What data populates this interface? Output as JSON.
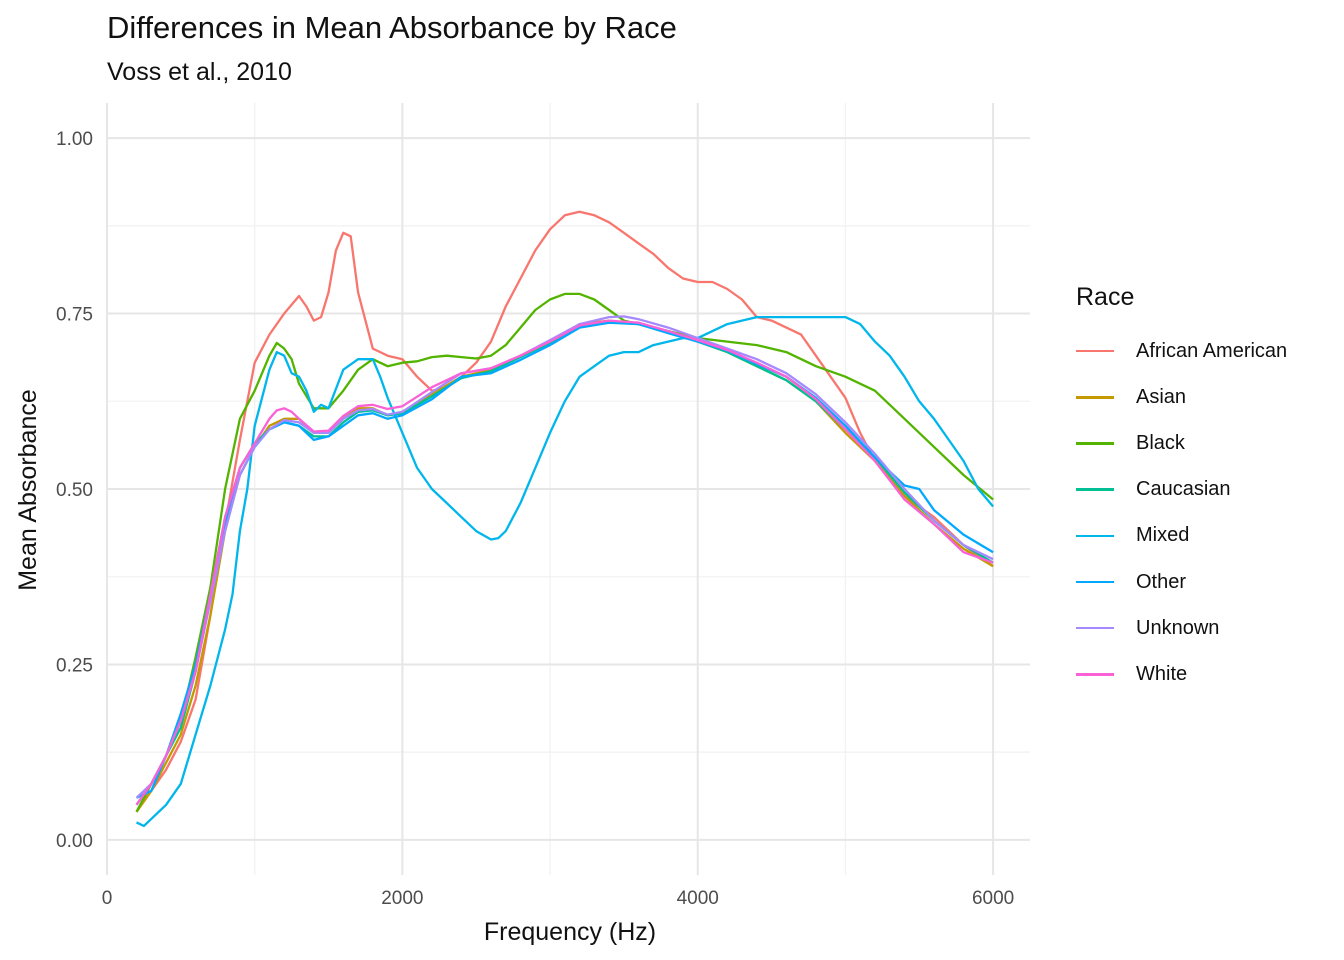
{
  "chart_data": {
    "type": "line",
    "title": "Differences in Mean Absorbance by Race",
    "subtitle": "Voss et al., 2010",
    "xlabel": "Frequency (Hz)",
    "ylabel": "Mean Absorbance",
    "xlim": [
      0,
      6250
    ],
    "ylim": [
      -0.05,
      1.05
    ],
    "x_ticks": [
      0,
      2000,
      4000,
      6000
    ],
    "x_tick_labels": [
      "0",
      "2000",
      "4000",
      "6000"
    ],
    "y_ticks": [
      0,
      0.25,
      0.5,
      0.75,
      1.0
    ],
    "y_tick_labels": [
      "0.00",
      "0.25",
      "0.50",
      "0.75",
      "1.00"
    ],
    "grid": true,
    "legend_title": "Race",
    "legend_position": "right",
    "series": [
      {
        "name": "African American",
        "color": "#F8766D",
        "x": [
          200,
          300,
          400,
          500,
          600,
          700,
          800,
          900,
          1000,
          1100,
          1200,
          1300,
          1350,
          1400,
          1450,
          1500,
          1550,
          1600,
          1650,
          1700,
          1800,
          1900,
          2000,
          2100,
          2200,
          2300,
          2400,
          2500,
          2600,
          2700,
          2800,
          2900,
          3000,
          3100,
          3200,
          3300,
          3400,
          3500,
          3600,
          3700,
          3800,
          3900,
          4000,
          4100,
          4200,
          4300,
          4400,
          4500,
          4600,
          4700,
          4800,
          4900,
          5000,
          5100,
          5200,
          5300,
          5400,
          5500,
          5600,
          5700,
          5800,
          5900,
          6000
        ],
        "y": [
          0.04,
          0.07,
          0.1,
          0.14,
          0.2,
          0.32,
          0.45,
          0.57,
          0.68,
          0.72,
          0.75,
          0.775,
          0.76,
          0.74,
          0.745,
          0.78,
          0.84,
          0.865,
          0.86,
          0.78,
          0.7,
          0.69,
          0.685,
          0.66,
          0.64,
          0.645,
          0.66,
          0.68,
          0.71,
          0.76,
          0.8,
          0.84,
          0.87,
          0.89,
          0.895,
          0.89,
          0.88,
          0.865,
          0.85,
          0.835,
          0.815,
          0.8,
          0.795,
          0.795,
          0.785,
          0.77,
          0.745,
          0.74,
          0.73,
          0.72,
          0.69,
          0.66,
          0.63,
          0.58,
          0.54,
          0.515,
          0.49,
          0.475,
          0.46,
          0.44,
          0.42,
          0.405,
          0.39
        ]
      },
      {
        "name": "Asian",
        "color": "#C49A00",
        "x": [
          200,
          300,
          400,
          500,
          600,
          700,
          800,
          900,
          1000,
          1100,
          1200,
          1300,
          1400,
          1500,
          1600,
          1700,
          1800,
          1900,
          2000,
          2200,
          2400,
          2600,
          2800,
          3000,
          3200,
          3400,
          3600,
          3800,
          4000,
          4200,
          4400,
          4600,
          4800,
          5000,
          5200,
          5400,
          5600,
          5800,
          6000
        ],
        "y": [
          0.04,
          0.07,
          0.11,
          0.15,
          0.22,
          0.32,
          0.44,
          0.52,
          0.56,
          0.59,
          0.6,
          0.6,
          0.58,
          0.58,
          0.6,
          0.615,
          0.615,
          0.605,
          0.61,
          0.635,
          0.66,
          0.67,
          0.69,
          0.71,
          0.735,
          0.74,
          0.735,
          0.725,
          0.71,
          0.695,
          0.675,
          0.655,
          0.625,
          0.58,
          0.54,
          0.49,
          0.45,
          0.415,
          0.39
        ]
      },
      {
        "name": "Black",
        "color": "#53B400",
        "x": [
          200,
          300,
          400,
          500,
          600,
          700,
          800,
          900,
          1000,
          1100,
          1150,
          1200,
          1250,
          1300,
          1400,
          1500,
          1600,
          1700,
          1800,
          1900,
          2000,
          2100,
          2200,
          2300,
          2400,
          2500,
          2600,
          2700,
          2800,
          2900,
          3000,
          3100,
          3200,
          3300,
          3400,
          3500,
          3600,
          3700,
          3800,
          4000,
          4200,
          4400,
          4600,
          4800,
          5000,
          5200,
          5400,
          5600,
          5800,
          6000
        ],
        "y": [
          0.04,
          0.08,
          0.12,
          0.17,
          0.26,
          0.36,
          0.5,
          0.6,
          0.64,
          0.69,
          0.708,
          0.7,
          0.685,
          0.65,
          0.615,
          0.615,
          0.64,
          0.67,
          0.685,
          0.675,
          0.68,
          0.682,
          0.688,
          0.69,
          0.688,
          0.686,
          0.69,
          0.705,
          0.73,
          0.755,
          0.77,
          0.778,
          0.778,
          0.77,
          0.755,
          0.74,
          0.735,
          0.73,
          0.725,
          0.715,
          0.71,
          0.705,
          0.695,
          0.675,
          0.66,
          0.64,
          0.6,
          0.56,
          0.52,
          0.485
        ]
      },
      {
        "name": "Caucasian",
        "color": "#00C094",
        "x": [
          200,
          300,
          400,
          500,
          600,
          700,
          800,
          900,
          1000,
          1100,
          1200,
          1300,
          1400,
          1500,
          1600,
          1700,
          1800,
          1900,
          2000,
          2200,
          2400,
          2600,
          2800,
          3000,
          3200,
          3400,
          3600,
          3800,
          4000,
          4200,
          4400,
          4600,
          4800,
          5000,
          5200,
          5400,
          5600,
          5800,
          6000
        ],
        "y": [
          0.05,
          0.08,
          0.12,
          0.16,
          0.24,
          0.35,
          0.46,
          0.53,
          0.565,
          0.585,
          0.595,
          0.59,
          0.575,
          0.575,
          0.595,
          0.61,
          0.612,
          0.605,
          0.608,
          0.632,
          0.658,
          0.668,
          0.688,
          0.708,
          0.732,
          0.738,
          0.735,
          0.725,
          0.71,
          0.695,
          0.675,
          0.655,
          0.625,
          0.585,
          0.545,
          0.495,
          0.455,
          0.42,
          0.395
        ]
      },
      {
        "name": "Mixed",
        "color": "#00B6EB",
        "x": [
          200,
          250,
          300,
          400,
          500,
          600,
          700,
          800,
          850,
          900,
          950,
          1000,
          1100,
          1150,
          1200,
          1250,
          1300,
          1350,
          1400,
          1450,
          1500,
          1600,
          1700,
          1800,
          1850,
          1900,
          2000,
          2100,
          2200,
          2300,
          2400,
          2500,
          2600,
          2650,
          2700,
          2800,
          2900,
          3000,
          3100,
          3200,
          3300,
          3400,
          3500,
          3600,
          3700,
          3800,
          3900,
          4000,
          4100,
          4200,
          4300,
          4400,
          4500,
          4600,
          4700,
          4800,
          4900,
          5000,
          5100,
          5200,
          5300,
          5400,
          5500,
          5600,
          5700,
          5800,
          5900,
          6000
        ],
        "y": [
          0.025,
          0.02,
          0.03,
          0.05,
          0.08,
          0.15,
          0.22,
          0.3,
          0.35,
          0.44,
          0.5,
          0.59,
          0.67,
          0.695,
          0.69,
          0.665,
          0.66,
          0.64,
          0.61,
          0.62,
          0.615,
          0.67,
          0.685,
          0.685,
          0.66,
          0.63,
          0.58,
          0.53,
          0.5,
          0.48,
          0.46,
          0.44,
          0.428,
          0.43,
          0.44,
          0.48,
          0.53,
          0.58,
          0.625,
          0.66,
          0.675,
          0.69,
          0.695,
          0.695,
          0.705,
          0.71,
          0.715,
          0.715,
          0.725,
          0.735,
          0.74,
          0.745,
          0.745,
          0.745,
          0.745,
          0.745,
          0.745,
          0.745,
          0.735,
          0.71,
          0.69,
          0.66,
          0.625,
          0.6,
          0.57,
          0.54,
          0.5,
          0.475
        ]
      },
      {
        "name": "Other",
        "color": "#00A9FF",
        "x": [
          200,
          300,
          400,
          500,
          600,
          700,
          800,
          900,
          1000,
          1100,
          1200,
          1300,
          1400,
          1500,
          1600,
          1700,
          1800,
          1900,
          2000,
          2200,
          2400,
          2600,
          2800,
          3000,
          3200,
          3400,
          3600,
          3800,
          4000,
          4200,
          4400,
          4600,
          4800,
          5000,
          5200,
          5400,
          5500,
          5600,
          5800,
          6000
        ],
        "y": [
          0.06,
          0.07,
          0.12,
          0.18,
          0.25,
          0.35,
          0.45,
          0.52,
          0.56,
          0.585,
          0.595,
          0.59,
          0.57,
          0.575,
          0.59,
          0.605,
          0.608,
          0.6,
          0.605,
          0.628,
          0.66,
          0.665,
          0.684,
          0.705,
          0.73,
          0.737,
          0.735,
          0.722,
          0.71,
          0.697,
          0.678,
          0.66,
          0.63,
          0.59,
          0.545,
          0.505,
          0.5,
          0.47,
          0.435,
          0.41
        ]
      },
      {
        "name": "Unknown",
        "color": "#A58AFF",
        "x": [
          200,
          300,
          400,
          500,
          600,
          700,
          800,
          900,
          1000,
          1100,
          1200,
          1300,
          1400,
          1500,
          1600,
          1700,
          1800,
          1900,
          2000,
          2200,
          2400,
          2600,
          2800,
          3000,
          3200,
          3400,
          3500,
          3600,
          3800,
          4000,
          4200,
          4400,
          4600,
          4800,
          5000,
          5200,
          5400,
          5600,
          5800,
          6000
        ],
        "y": [
          0.06,
          0.08,
          0.12,
          0.17,
          0.24,
          0.34,
          0.44,
          0.52,
          0.56,
          0.585,
          0.598,
          0.595,
          0.58,
          0.58,
          0.6,
          0.612,
          0.614,
          0.606,
          0.61,
          0.638,
          0.665,
          0.672,
          0.69,
          0.712,
          0.735,
          0.745,
          0.746,
          0.742,
          0.73,
          0.715,
          0.7,
          0.685,
          0.665,
          0.635,
          0.595,
          0.55,
          0.5,
          0.455,
          0.42,
          0.4
        ]
      },
      {
        "name": "White",
        "color": "#FB61D7",
        "x": [
          200,
          300,
          400,
          500,
          600,
          700,
          800,
          900,
          1000,
          1100,
          1150,
          1200,
          1250,
          1300,
          1400,
          1500,
          1600,
          1700,
          1800,
          1900,
          2000,
          2200,
          2400,
          2600,
          2800,
          3000,
          3200,
          3400,
          3600,
          3800,
          4000,
          4200,
          4400,
          4600,
          4800,
          5000,
          5200,
          5400,
          5600,
          5800,
          6000
        ],
        "y": [
          0.05,
          0.08,
          0.12,
          0.17,
          0.24,
          0.35,
          0.46,
          0.53,
          0.565,
          0.6,
          0.612,
          0.615,
          0.61,
          0.6,
          0.582,
          0.583,
          0.604,
          0.618,
          0.62,
          0.614,
          0.618,
          0.645,
          0.665,
          0.672,
          0.69,
          0.71,
          0.733,
          0.74,
          0.737,
          0.725,
          0.712,
          0.698,
          0.68,
          0.66,
          0.628,
          0.585,
          0.54,
          0.485,
          0.45,
          0.41,
          0.395
        ]
      }
    ]
  }
}
